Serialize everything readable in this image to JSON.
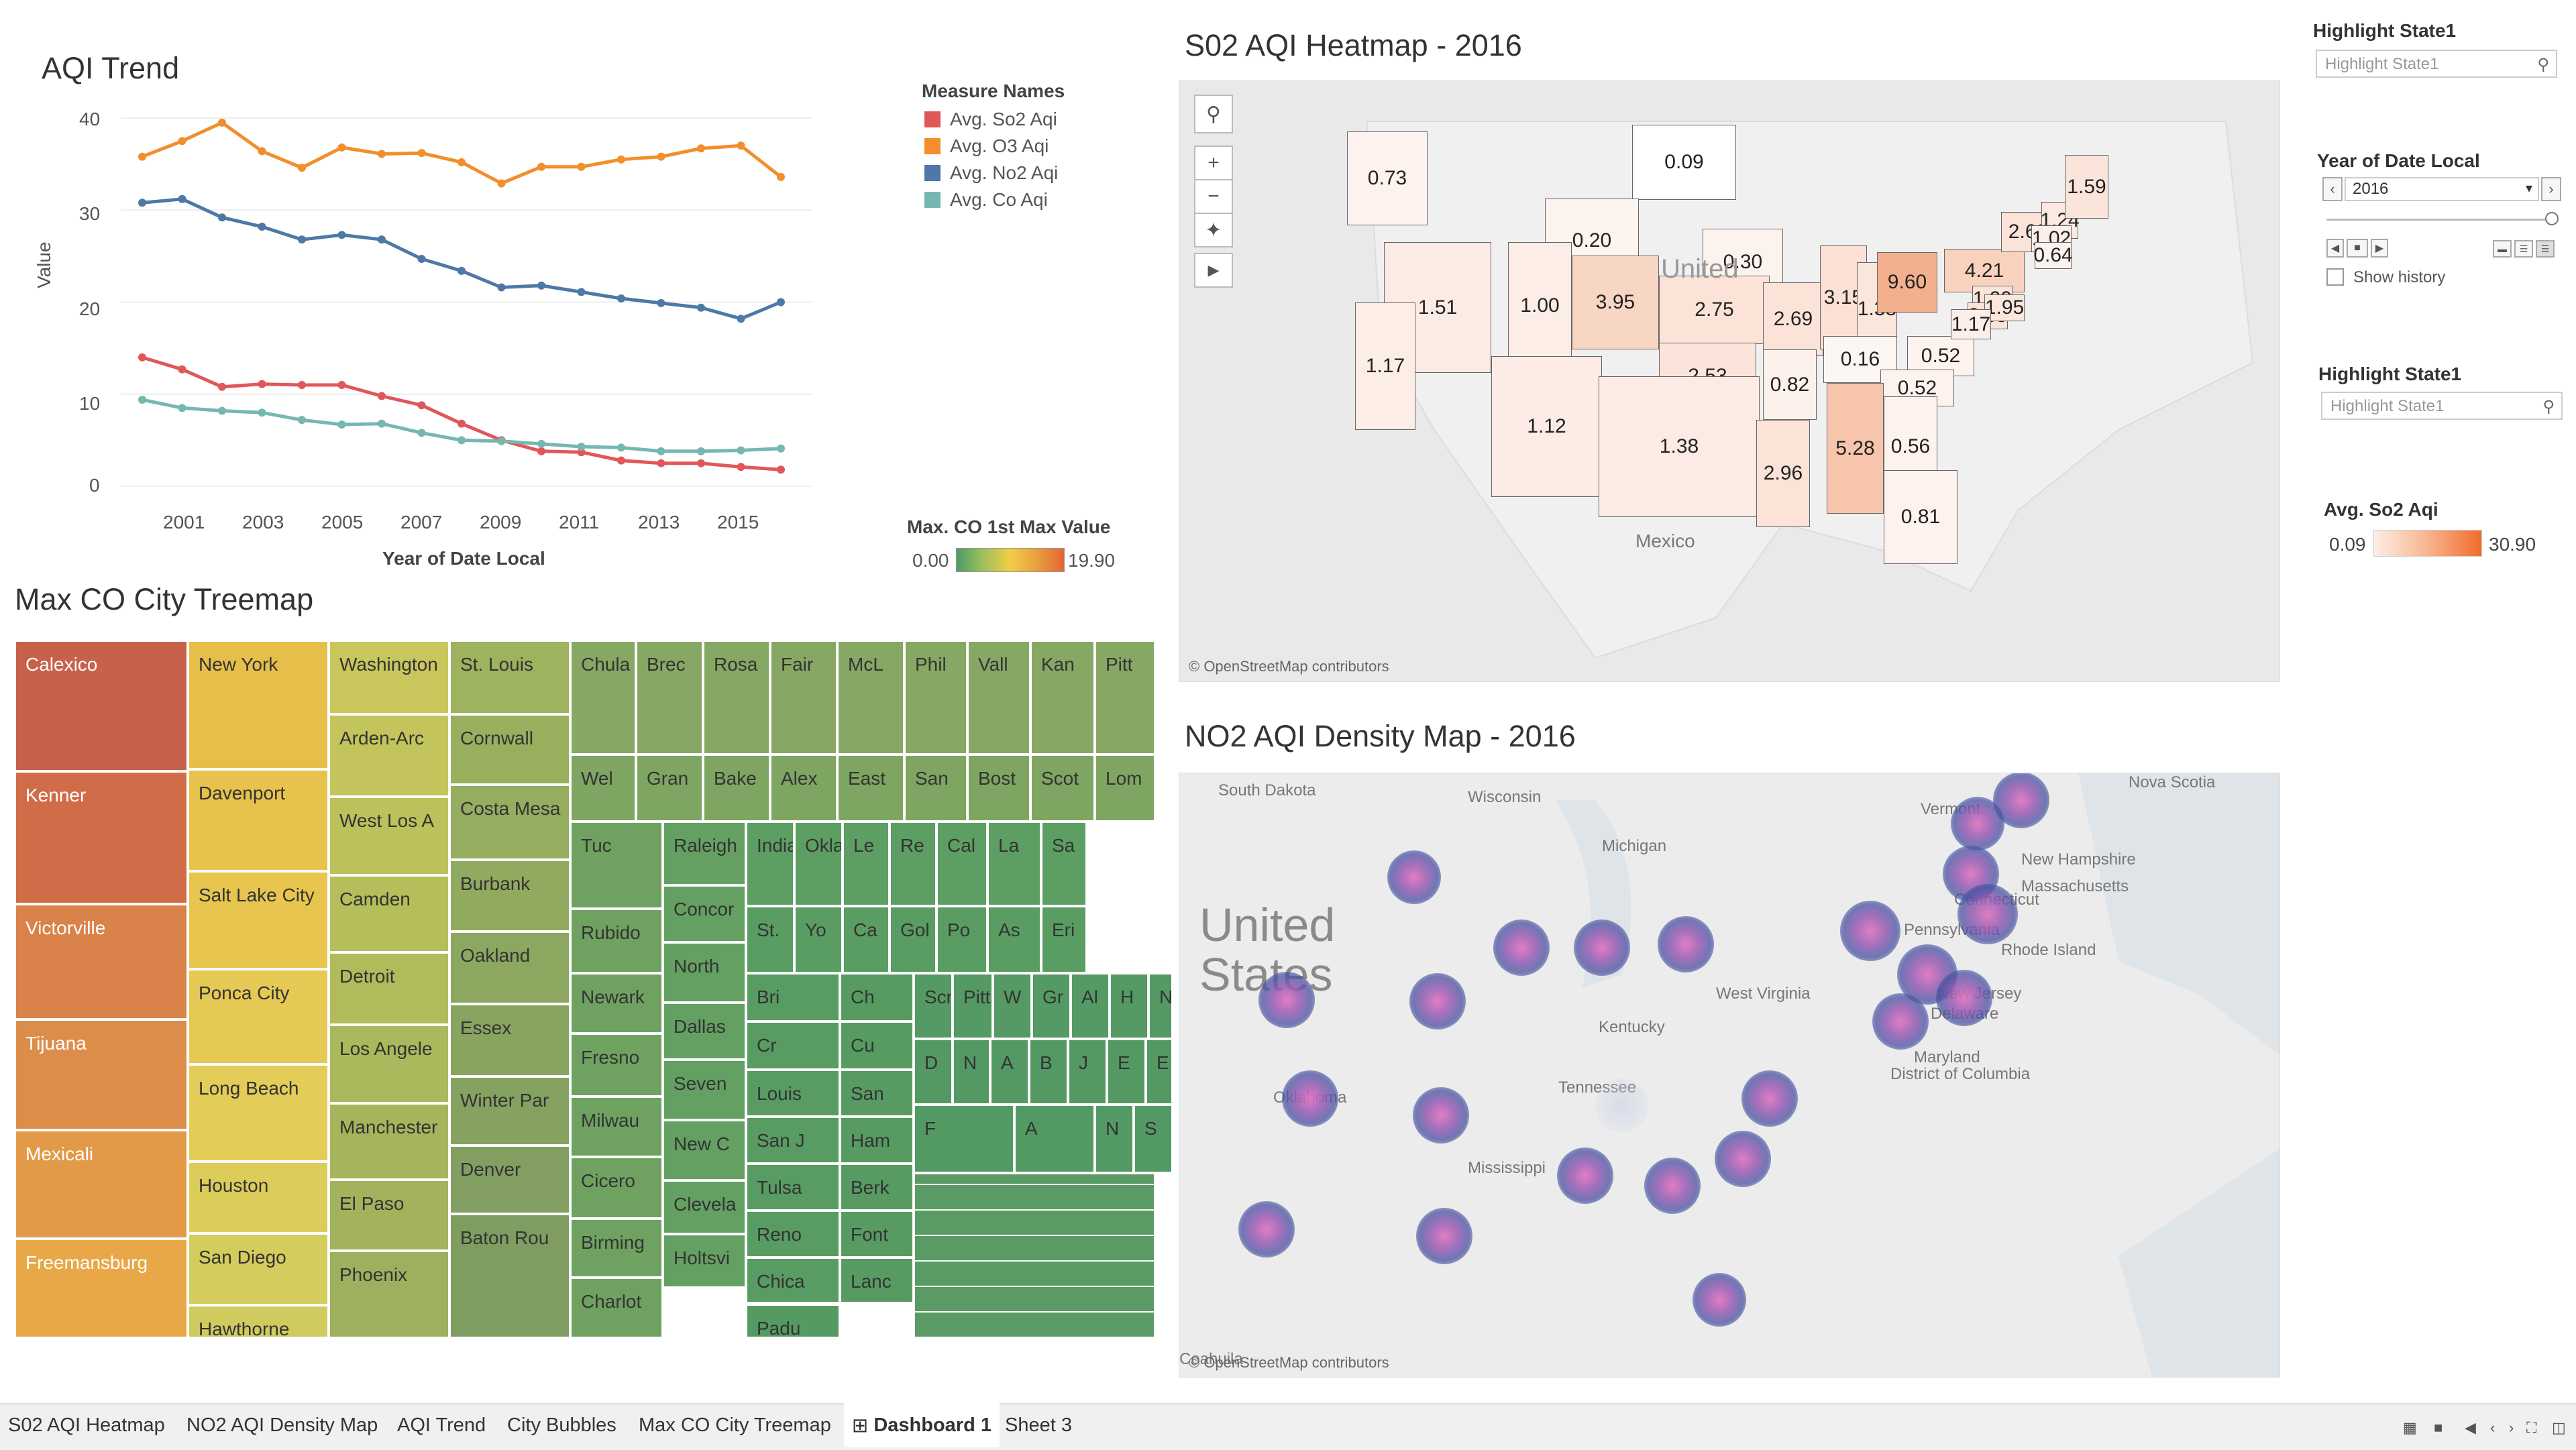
{
  "aqi_trend": {
    "title": "AQI Trend",
    "legend_title": "Measure Names",
    "ylabel": "Value",
    "xlabel": "Year of Date Local",
    "y_ticks": [
      "40",
      "30",
      "20",
      "10",
      "0"
    ],
    "x_ticks": [
      "2001",
      "2003",
      "2005",
      "2007",
      "2009",
      "2011",
      "2013",
      "2015"
    ],
    "color_legend_title": "Max. CO 1st Max Value",
    "color_min": "0.00",
    "color_max": "19.90"
  },
  "chart_data": {
    "type": "line",
    "title": "AQI Trend",
    "xlabel": "Year of Date Local",
    "ylabel": "Value",
    "ylim": [
      0,
      40
    ],
    "x": [
      2000,
      2001,
      2002,
      2003,
      2004,
      2005,
      2006,
      2007,
      2008,
      2009,
      2010,
      2011,
      2012,
      2013,
      2014,
      2015,
      2016
    ],
    "series": [
      {
        "name": "Avg. So2 Aqi",
        "color": "#e15759",
        "values": [
          14.0,
          12.7,
          10.8,
          11.1,
          11.0,
          11.0,
          9.8,
          8.8,
          6.8,
          5.0,
          3.8,
          3.7,
          2.8,
          2.5,
          2.5,
          2.1,
          1.8
        ]
      },
      {
        "name": "Avg. O3 Aqi",
        "color": "#f28e2b",
        "values": [
          35.8,
          37.5,
          39.5,
          36.4,
          34.6,
          36.8,
          36.1,
          36.2,
          35.2,
          32.9,
          34.7,
          34.7,
          35.5,
          35.8,
          36.7,
          37.0,
          33.6
        ]
      },
      {
        "name": "Avg. No2 Aqi",
        "color": "#4e79a7",
        "values": [
          30.8,
          31.2,
          29.2,
          28.2,
          26.8,
          27.3,
          26.8,
          24.7,
          23.4,
          21.6,
          21.8,
          21.1,
          20.4,
          19.9,
          19.4,
          18.2,
          20.0
        ]
      },
      {
        "name": "Avg. Co Aqi",
        "color": "#76b7b2",
        "values": [
          9.4,
          8.5,
          8.2,
          8.0,
          7.2,
          6.7,
          6.8,
          5.8,
          5.0,
          4.9,
          4.6,
          4.3,
          4.2,
          3.8,
          3.8,
          3.9,
          4.1
        ]
      }
    ]
  },
  "treemap": {
    "title": "Max CO City Treemap",
    "cities": [
      "Calexico",
      "Kenner",
      "Victorville",
      "Tijuana",
      "Mexicali",
      "Freemansburg",
      "New York",
      "Davenport",
      "Salt Lake City",
      "Ponca City",
      "Long Beach",
      "Houston",
      "San Diego",
      "Hawthorne",
      "Washington",
      "Arden-Arc",
      "West Los A",
      "Camden",
      "Detroit",
      "Los Angele",
      "Manchester",
      "El Paso",
      "Phoenix",
      "St. Louis",
      "Cornwall",
      "Costa Mesa",
      "Burbank",
      "Oakland",
      "Essex",
      "Winter Par",
      "Denver",
      "Baton Rou",
      "Chula Vista",
      "Brec",
      "Rosa",
      "Fair",
      "McL",
      "Phil",
      "Vall",
      "Kan",
      "Pitt",
      "Wel",
      "Gran",
      "Bake",
      "Alex",
      "East",
      "San",
      "Bost",
      "Scot",
      "Lom",
      "Tuc",
      "Rubido",
      "Newark",
      "Fresno",
      "Milwau",
      "Cicero",
      "Birming",
      "Charlot",
      "Raleigh",
      "Concor",
      "North",
      "Dallas",
      "Seven",
      "New C",
      "Clevela",
      "Holtsvi",
      "Indian",
      "Oklaho",
      "Le",
      "Re",
      "Cal",
      "La",
      "Sa",
      "St.",
      "Yo",
      "Ca",
      "Gol",
      "Po",
      "As",
      "Eri",
      "Bri",
      "Ch",
      "Cr",
      "Cu",
      "Louis",
      "San",
      "San J",
      "Ham",
      "Tulsa",
      "Berk",
      "Reno",
      "Font",
      "Chica",
      "Lanc",
      "Padu",
      "Scra",
      "Pitts",
      "W",
      "Gr",
      "Al",
      "H",
      "N",
      "D",
      "N",
      "A",
      "B",
      "J",
      "E",
      "E",
      "F",
      "A",
      "N",
      "S"
    ]
  },
  "so2_map": {
    "title": "S02 AQI Heatmap - 2016",
    "values": [
      "0.73",
      "0.09",
      "0.20",
      "0.30",
      "1.51",
      "1.00",
      "3.95",
      "2.75",
      "2.69",
      "3.15",
      "1.38",
      "9.60",
      "4.21",
      "2.69",
      "1.24",
      "1.59",
      "1.02",
      "0.64",
      "1.17",
      "1.12",
      "2.53",
      "0.82",
      "0.16",
      "0.52",
      "0.52",
      "1.99",
      "2.35",
      "1.95",
      "1.17",
      "1.38",
      "2.96",
      "5.28",
      "0.56",
      "0.81"
    ],
    "labels": [
      "United",
      "Mexico"
    ],
    "attribution": "© OpenStreetMap contributors"
  },
  "no2_map": {
    "title": "NO2 AQI Density Map - 2016",
    "labels": [
      "South Dakota",
      "Wisconsin",
      "Michigan",
      "United States",
      "Vermont",
      "Nova Scotia",
      "New Hampshire",
      "Massachusetts",
      "Connecticut",
      "Rhode Island",
      "Pennsylvania",
      "New Jersey",
      "Delaware",
      "Maryland",
      "District of Columbia",
      "West Virginia",
      "Kentucky",
      "Tennessee",
      "Oklahoma",
      "Mississippi",
      "Coahuila"
    ],
    "attribution": "© OpenStreetMap contributors"
  },
  "right_panel": {
    "highlight1_title": "Highlight State1",
    "highlight1_placeholder": "Highlight State1",
    "year_title": "Year of Date Local",
    "year_value": "2016",
    "show_history": "Show history",
    "highlight2_title": "Highlight State1",
    "highlight2_placeholder": "Highlight State1",
    "so2_legend_title": "Avg. So2 Aqi",
    "so2_min": "0.09",
    "so2_max": "30.90"
  },
  "tabs": [
    "S02 AQI Heatmap",
    "NO2 AQI Density Map",
    "AQI Trend",
    "City Bubbles",
    "Max CO City Treemap",
    "Dashboard 1",
    "Sheet 3"
  ],
  "active_tab": "Dashboard 1"
}
